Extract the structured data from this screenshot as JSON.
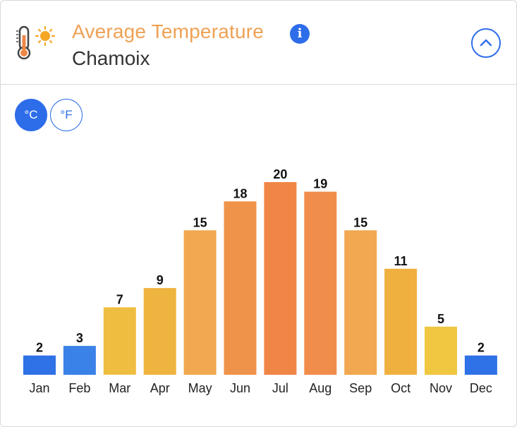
{
  "header": {
    "title": "Average Temperature",
    "location": "Chamoix",
    "info_icon": "i"
  },
  "units": {
    "celsius_label": "°C",
    "fahrenheit_label": "°F",
    "selected": "celsius"
  },
  "colors": {
    "accent": "#2e6de9",
    "title": "#eea154"
  },
  "chart_data": {
    "type": "bar",
    "title": "Average Temperature",
    "xlabel": "",
    "ylabel": "",
    "unit": "°C",
    "categories": [
      "Jan",
      "Feb",
      "Mar",
      "Apr",
      "May",
      "Jun",
      "Jul",
      "Aug",
      "Sep",
      "Oct",
      "Nov",
      "Dec"
    ],
    "values": [
      2,
      3,
      7,
      9,
      15,
      18,
      20,
      19,
      15,
      11,
      5,
      2
    ],
    "colors": [
      "#2f71e6",
      "#3a82e8",
      "#efbd3f",
      "#efb43f",
      "#f1a850",
      "#f0934a",
      "#f08646",
      "#f08d4a",
      "#f1a850",
      "#efb03f",
      "#efc740",
      "#2f71e6"
    ],
    "ylim": [
      0,
      20
    ],
    "grid": false,
    "legend": "none"
  }
}
